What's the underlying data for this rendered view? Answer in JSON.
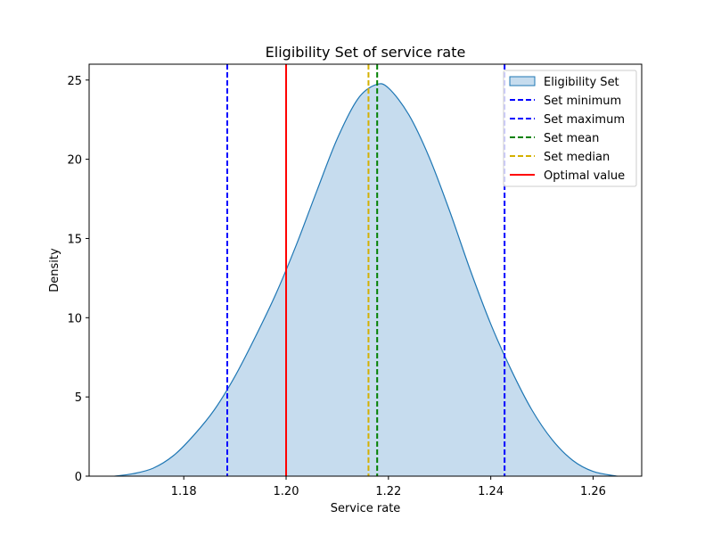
{
  "chart_data": {
    "type": "area",
    "title": "Eligibility Set of service rate",
    "xlabel": "Service rate",
    "ylabel": "Density",
    "xlim": [
      1.1615,
      1.2695
    ],
    "ylim": [
      0,
      26
    ],
    "xticks": [
      1.18,
      1.2,
      1.22,
      1.24,
      1.26
    ],
    "xtick_labels": [
      "1.18",
      "1.20",
      "1.22",
      "1.24",
      "1.26"
    ],
    "yticks": [
      0,
      5,
      10,
      15,
      20,
      25
    ],
    "ytick_labels": [
      "0",
      "5",
      "10",
      "15",
      "20",
      "25"
    ],
    "grid": false,
    "legend_position": "top-right",
    "density": {
      "name": "Eligibility Set",
      "color": "#1f77b4",
      "fill": "#c6dcee",
      "x": [
        1.1665,
        1.17,
        1.174,
        1.178,
        1.182,
        1.186,
        1.19,
        1.194,
        1.198,
        1.202,
        1.206,
        1.21,
        1.214,
        1.2175,
        1.22,
        1.224,
        1.228,
        1.232,
        1.236,
        1.24,
        1.244,
        1.248,
        1.252,
        1.256,
        1.26,
        1.2647
      ],
      "y": [
        0.0,
        0.15,
        0.5,
        1.3,
        2.6,
        4.2,
        6.3,
        8.8,
        11.5,
        14.6,
        18.0,
        21.3,
        23.8,
        24.7,
        24.5,
        22.8,
        20.1,
        16.7,
        13.0,
        9.6,
        6.7,
        4.2,
        2.3,
        1.0,
        0.3,
        0.0
      ]
    },
    "lines": [
      {
        "label": "Set minimum",
        "x": 1.1885,
        "color": "#0000ff",
        "style": "dashed"
      },
      {
        "label": "Set maximum",
        "x": 1.2427,
        "color": "#0000ff",
        "style": "dashed"
      },
      {
        "label": "Set mean",
        "x": 1.2178,
        "color": "#008000",
        "style": "dashed"
      },
      {
        "label": "Set median",
        "x": 1.2161,
        "color": "#d4b000",
        "style": "dashed"
      },
      {
        "label": "Optimal value",
        "x": 1.2,
        "color": "#ff0000",
        "style": "solid"
      }
    ],
    "legend": [
      "Eligibility Set",
      "Set minimum",
      "Set maximum",
      "Set mean",
      "Set median",
      "Optimal value"
    ]
  }
}
